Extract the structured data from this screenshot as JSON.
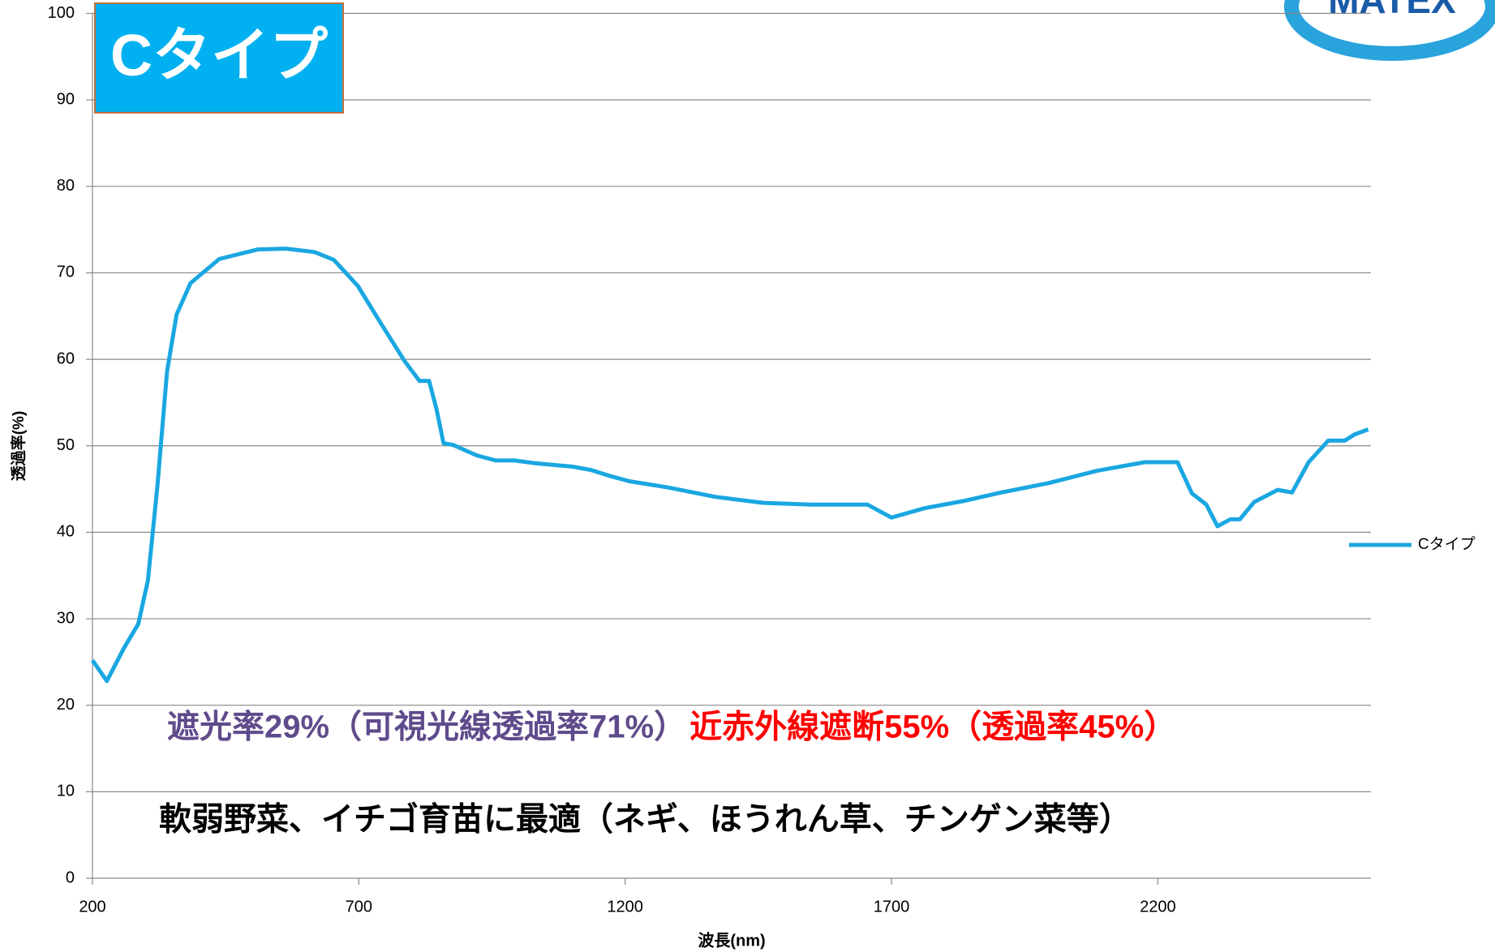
{
  "chart_data": {
    "type": "line",
    "title": "Cタイプ",
    "xlabel": "波長(nm)",
    "ylabel": "透過率(%)",
    "xlim": [
      200,
      2600
    ],
    "xticks": [
      200,
      700,
      1200,
      1700,
      2200
    ],
    "ylim": [
      0,
      100
    ],
    "yticks": [
      0,
      10,
      20,
      30,
      40,
      50,
      60,
      70,
      80,
      90,
      100
    ],
    "grid": true,
    "legend": "right",
    "x": [
      200,
      227,
      259,
      286,
      304,
      322,
      340,
      358,
      384,
      438,
      510,
      563,
      617,
      653,
      698,
      742,
      787,
      814,
      832,
      846,
      859,
      877,
      921,
      957,
      993,
      1029,
      1100,
      1136,
      1172,
      1208,
      1279,
      1369,
      1459,
      1548,
      1655,
      1700,
      1763,
      1834,
      1906,
      1996,
      2085,
      2175,
      2237,
      2264,
      2291,
      2312,
      2336,
      2354,
      2381,
      2425,
      2452,
      2483,
      2520,
      2551,
      2569,
      2595
    ],
    "series": [
      {
        "name": "Cタイプ",
        "color": "#1aa7e1",
        "values": [
          25.2,
          22.8,
          26.6,
          29.4,
          34.4,
          45.4,
          58.6,
          65.2,
          68.8,
          71.6,
          72.7,
          72.8,
          72.4,
          71.5,
          68.5,
          64.1,
          59.7,
          57.5,
          57.5,
          54.2,
          50.3,
          50.1,
          48.9,
          48.3,
          48.3,
          48.0,
          47.6,
          47.2,
          46.5,
          45.9,
          45.2,
          44.1,
          43.4,
          43.2,
          43.2,
          41.7,
          42.8,
          43.6,
          44.6,
          45.7,
          47.1,
          48.1,
          48.1,
          44.5,
          43.2,
          40.7,
          41.5,
          41.5,
          43.5,
          44.9,
          44.6,
          48.1,
          50.6,
          50.6,
          51.3,
          51.9
        ]
      }
    ],
    "annotations": [
      {
        "text": "遮光率29%（可視光線透過率71%）",
        "color": "#5f4b8b"
      },
      {
        "text": "近赤外線遮断55%（透過率45%）",
        "color": "#ff0000"
      },
      {
        "text": "軟弱野菜、イチゴ育苗に最適（ネギ、ほうれん草、チンゲン菜等）",
        "color": "#000000"
      }
    ]
  },
  "logo": "MATEX"
}
